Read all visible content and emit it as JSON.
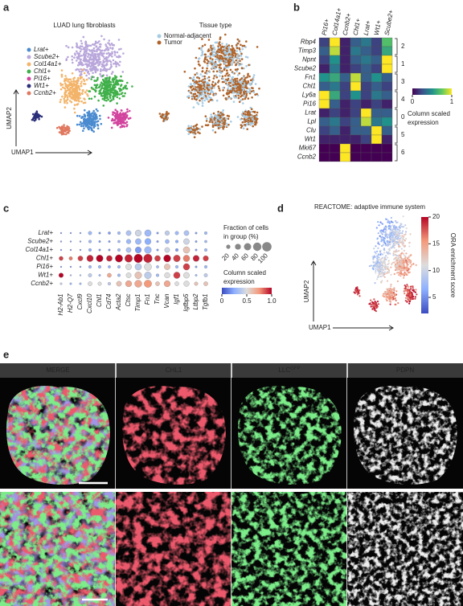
{
  "panel_labels": [
    "a",
    "b",
    "c",
    "d",
    "e"
  ],
  "chart_data": [
    {
      "type": "umap",
      "title": "LUAD lung fibroblasts",
      "xlabel": "UMAP1",
      "ylabel": "UMAP2",
      "legend": [
        {
          "name": "Lrat+",
          "color": "#4a8bd0"
        },
        {
          "name": "Scube2+",
          "color": "#b9a7db"
        },
        {
          "name": "Col14a1+",
          "color": "#f3b46a"
        },
        {
          "name": "Chl1+",
          "color": "#40b04a"
        },
        {
          "name": "Pi16+",
          "color": "#d2449e"
        },
        {
          "name": "Wt1+",
          "color": "#2b2f7a"
        },
        {
          "name": "Ccnb2+",
          "color": "#e0785f"
        }
      ]
    },
    {
      "type": "umap",
      "title": "Tissue type",
      "legend": [
        {
          "name": "Normal-adjacent",
          "color": "#a6cbe3"
        },
        {
          "name": "Tumor",
          "color": "#b0642a"
        }
      ]
    },
    {
      "type": "heatmap",
      "columns": [
        "Pi16+",
        "Col14a1+",
        "Ccnb2+",
        "Chl1+",
        "Lrat+",
        "Wt1+",
        "Scube2+"
      ],
      "rows": [
        "Rbp4",
        "Timp3",
        "Npnt",
        "Scube2",
        "Fn1",
        "Chl1",
        "Ly6a",
        "Pi16",
        "Lrat",
        "Lpl",
        "Clu",
        "Wt1",
        "Mki67",
        "Ccnb2"
      ],
      "clusters": [
        2,
        1,
        3,
        4,
        0,
        5,
        6
      ],
      "values": [
        [
          0.2,
          1,
          0.1,
          0.3,
          0.4,
          0.2,
          0.7
        ],
        [
          0.3,
          0.9,
          0.1,
          0.4,
          0.3,
          0.2,
          0.6
        ],
        [
          0.2,
          0.5,
          0.1,
          0.3,
          0.4,
          0.3,
          1
        ],
        [
          0.1,
          0.4,
          0.1,
          0.2,
          0.3,
          0.2,
          1
        ],
        [
          0.5,
          0.6,
          0.3,
          0.9,
          0.3,
          0.5,
          0.3
        ],
        [
          0.3,
          0.4,
          0.2,
          1,
          0.2,
          0.3,
          0.2
        ],
        [
          1,
          0.6,
          0.2,
          0.5,
          0.2,
          0.4,
          0.3
        ],
        [
          1,
          0.3,
          0.1,
          0.2,
          0.1,
          0.2,
          0.1
        ],
        [
          0.1,
          0.2,
          0.1,
          0.2,
          1,
          0.3,
          0.3
        ],
        [
          0.3,
          0.4,
          0.2,
          0.3,
          0.9,
          0.4,
          0.5
        ],
        [
          0.2,
          0.3,
          0.1,
          0.3,
          0.3,
          1,
          0.3
        ],
        [
          0.1,
          0.1,
          0.1,
          0.1,
          0.2,
          1,
          0.1
        ],
        [
          0,
          0,
          1,
          0,
          0,
          0,
          0
        ],
        [
          0,
          0,
          1,
          0,
          0,
          0,
          0
        ]
      ],
      "colorbar": {
        "label": [
          "Column scaled",
          "expression"
        ],
        "lim": [
          0,
          1
        ],
        "ticks": [
          0,
          1
        ]
      }
    },
    {
      "type": "dotplot",
      "rows": [
        "Lrat+",
        "Scube2+",
        "Col14a1+",
        "Chl1+",
        "Pi16+",
        "Wt1+",
        "Ccnb2+"
      ],
      "columns": [
        "H2-Ab1",
        "H2-Q7",
        "Cxcl9",
        "Cxcl10",
        "Chl1",
        "Cd74",
        "Acta2",
        "Ctsc",
        "Timp1",
        "Fn1",
        "Tnc",
        "Vcan",
        "Igf1",
        "Igfbp5",
        "Ltbp2",
        "Tgfb1"
      ],
      "fraction": [
        [
          3,
          3,
          3,
          15,
          5,
          8,
          10,
          30,
          45,
          50,
          5,
          25,
          15,
          30,
          5,
          10
        ],
        [
          3,
          3,
          3,
          10,
          5,
          5,
          8,
          25,
          40,
          45,
          5,
          20,
          10,
          40,
          5,
          8
        ],
        [
          3,
          3,
          3,
          10,
          5,
          5,
          10,
          30,
          45,
          55,
          5,
          30,
          10,
          50,
          5,
          10
        ],
        [
          20,
          15,
          30,
          50,
          55,
          40,
          65,
          70,
          85,
          85,
          40,
          60,
          55,
          50,
          45,
          35
        ],
        [
          3,
          3,
          3,
          10,
          10,
          8,
          10,
          40,
          50,
          60,
          8,
          40,
          10,
          50,
          5,
          10
        ],
        [
          25,
          3,
          3,
          15,
          5,
          20,
          10,
          30,
          55,
          55,
          10,
          35,
          50,
          40,
          5,
          15
        ],
        [
          5,
          5,
          5,
          20,
          15,
          10,
          30,
          45,
          60,
          65,
          20,
          45,
          20,
          35,
          15,
          20
        ]
      ],
      "expression": [
        [
          0.2,
          0.2,
          0.2,
          0.3,
          0.2,
          0.2,
          0.3,
          0.35,
          0.45,
          0.3,
          0.2,
          0.4,
          0.3,
          0.35,
          0.2,
          0.3
        ],
        [
          0.2,
          0.2,
          0.2,
          0.3,
          0.2,
          0.2,
          0.3,
          0.3,
          0.3,
          0.25,
          0.2,
          0.3,
          0.25,
          0.45,
          0.2,
          0.3
        ],
        [
          0.2,
          0.2,
          0.2,
          0.25,
          0.2,
          0.2,
          0.3,
          0.35,
          0.2,
          0.3,
          0.2,
          0.45,
          0.2,
          0.6,
          0.2,
          0.3
        ],
        [
          0.9,
          0.8,
          0.9,
          0.95,
          1,
          0.95,
          1,
          0.95,
          1,
          0.95,
          0.9,
          1,
          0.9,
          0.8,
          0.95,
          0.9
        ],
        [
          0.2,
          0.2,
          0.2,
          0.3,
          0.3,
          0.25,
          0.3,
          0.5,
          0.4,
          0.5,
          0.3,
          0.6,
          0.3,
          0.9,
          0.2,
          0.3
        ],
        [
          1,
          0.3,
          0.3,
          0.4,
          0.3,
          0.7,
          0.3,
          0.5,
          0.6,
          0.4,
          0.3,
          0.5,
          0.9,
          0.5,
          0.3,
          0.4
        ],
        [
          0.4,
          0.3,
          0.3,
          0.5,
          0.5,
          0.4,
          0.6,
          0.7,
          0.7,
          0.75,
          0.6,
          0.7,
          0.5,
          0.5,
          0.6,
          0.6
        ]
      ],
      "size_legend": {
        "title": [
          "Fraction of cells",
          "in group (%)"
        ],
        "lim": [
          0,
          100
        ],
        "values": [
          20,
          40,
          60,
          80,
          100
        ]
      },
      "colorbar": {
        "label": [
          "Column scaled",
          "expression"
        ],
        "lim": [
          0,
          1
        ],
        "ticks": [
          0,
          0.5,
          {
            "value": 1,
            "label": "1.0"
          }
        ]
      }
    },
    {
      "type": "umap",
      "title": "REACTOME: adaptive immune system",
      "xlabel": "UMAP1",
      "ylabel": "UMAP2",
      "colorbar": {
        "label": "ORA enrichment score",
        "lim": [
          2,
          20
        ],
        "ticks": [
          5,
          10,
          15,
          20
        ]
      }
    }
  ],
  "micrographs": {
    "columns": [
      {
        "label": "MERGE",
        "color": "#dddddd"
      },
      {
        "label": "CHL1",
        "color": "#e0443f"
      },
      {
        "label": "LLC",
        "superscript": "GFP",
        "color": "#4cc25a"
      },
      {
        "label": "PDPN",
        "color": "#dddddd"
      }
    ]
  }
}
